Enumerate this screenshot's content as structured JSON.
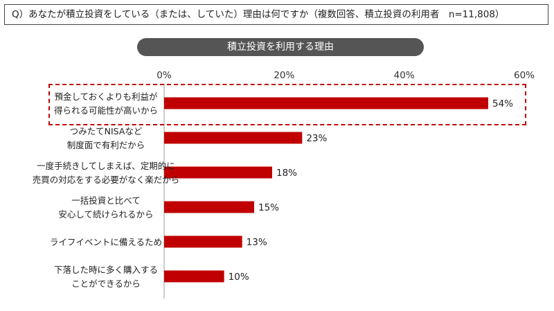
{
  "question": "Q）あなたが積立投資をしている（または、していた）理由は何ですか（複数回答、積立投資の利用者　n=11,808）",
  "section_label": "積立投資を利用する理由",
  "colors": {
    "bar": "#c00000",
    "pill": "#555555",
    "highlight": "#c00000",
    "axis": "#9a9a9a"
  },
  "chart_data": {
    "type": "bar",
    "orientation": "horizontal",
    "title": "積立投資を利用する理由",
    "xlim": [
      0,
      60
    ],
    "ticks": [
      {
        "value": 0,
        "label": "0%"
      },
      {
        "value": 20,
        "label": "20%"
      },
      {
        "value": 40,
        "label": "40%"
      },
      {
        "value": 60,
        "label": "60%"
      }
    ],
    "categories": [
      [
        "預金しておくよりも利益が",
        "得られる可能性が高いから"
      ],
      [
        "つみたてNISAなど",
        "制度面で有利だから"
      ],
      [
        "一度手続きしてしまえば、定期的に",
        "売買の対応をする必要がなく楽だから"
      ],
      [
        "一括投資と比べて",
        "安心して続けられるから"
      ],
      [
        "ライフイベントに備えるため"
      ],
      [
        "下落した時に多く購入する",
        "ことができるから"
      ]
    ],
    "values": [
      54,
      23,
      18,
      15,
      13,
      10
    ],
    "value_labels": [
      "54%",
      "23%",
      "18%",
      "15%",
      "13%",
      "10%"
    ],
    "highlighted_index": 0,
    "grid": false
  }
}
